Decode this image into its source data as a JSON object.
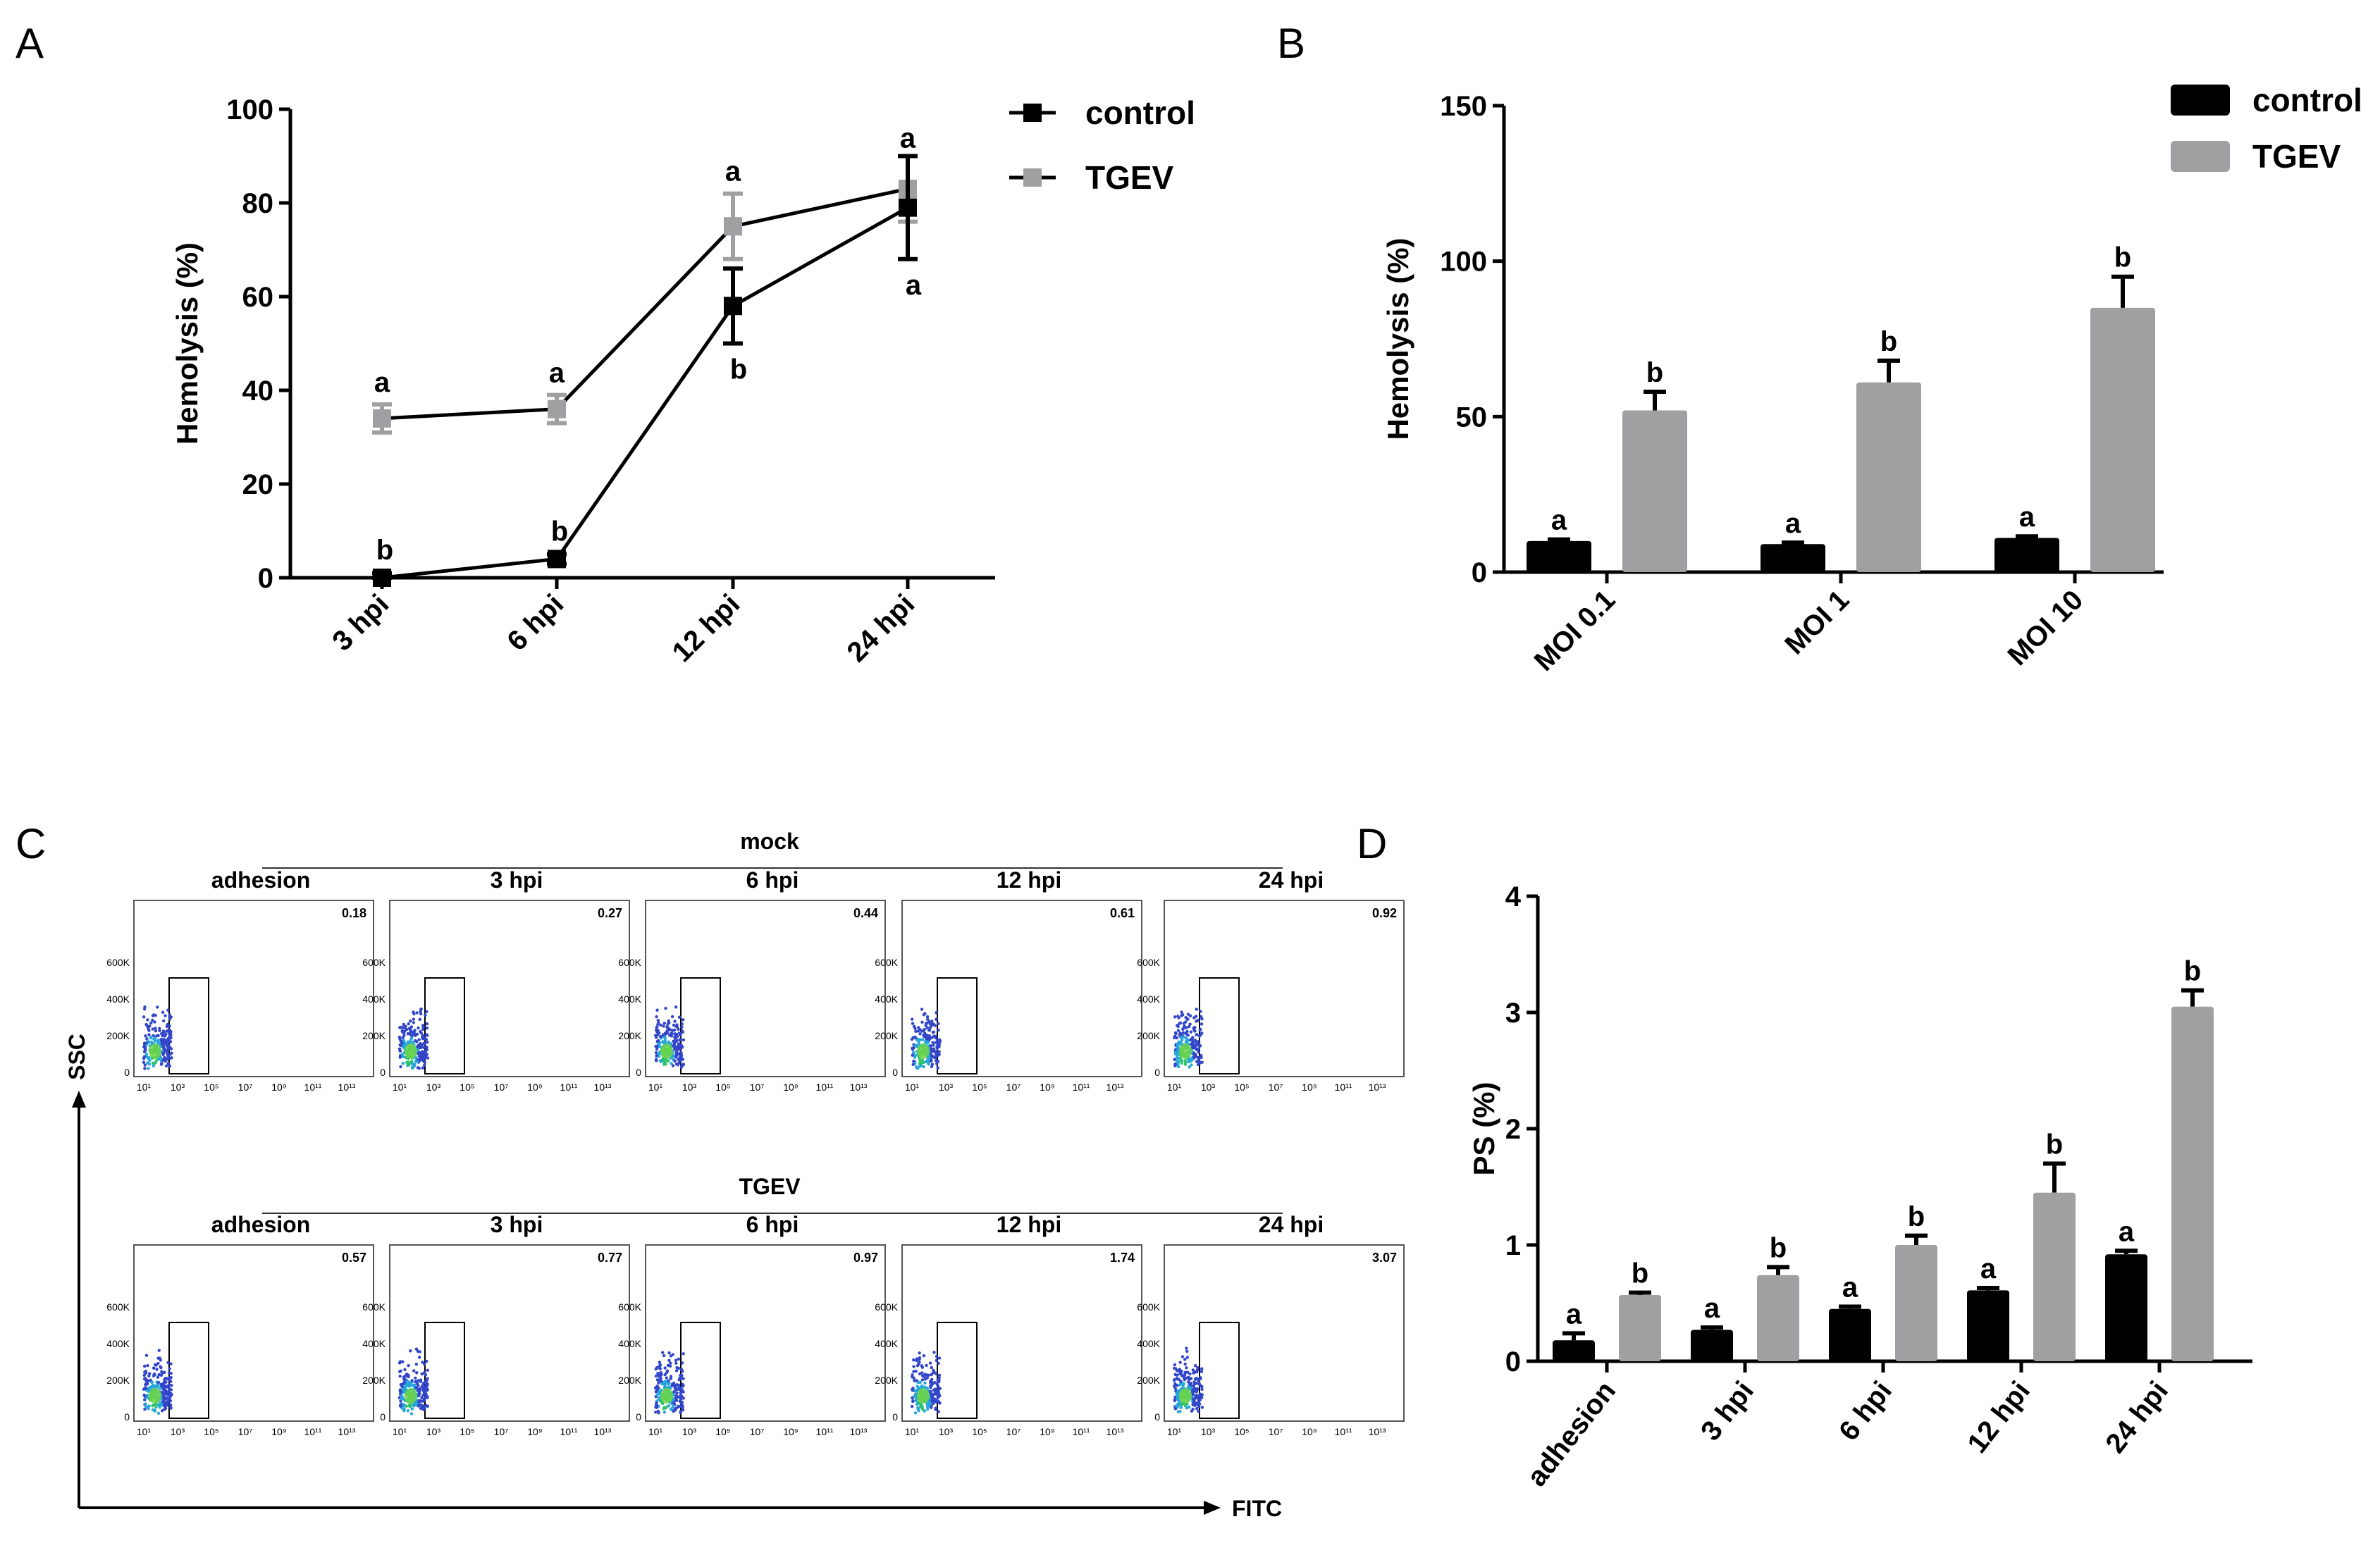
{
  "panels": {
    "A": "A",
    "B": "B",
    "C": "C",
    "D": "D"
  },
  "chart_data": [
    {
      "id": "A",
      "type": "line",
      "ylabel": "Hemolysis (%)",
      "ylim": [
        0,
        100
      ],
      "yticks": [
        "0",
        "20",
        "40",
        "60",
        "80",
        "100"
      ],
      "categories": [
        "3 hpi",
        "6 hpi",
        "12 hpi",
        "24 hpi"
      ],
      "series": [
        {
          "name": "control",
          "color": "#000000",
          "values": [
            0,
            4,
            58,
            79
          ],
          "errors": [
            1,
            1,
            8,
            11
          ],
          "letters": [
            "b",
            "b",
            "b",
            "a"
          ]
        },
        {
          "name": "TGEV",
          "color": "#a0a0a2",
          "values": [
            34,
            36,
            75,
            83
          ],
          "errors": [
            3,
            3,
            7,
            7
          ],
          "letters": [
            "a",
            "a",
            "a",
            "a"
          ]
        }
      ],
      "legend": "top-right"
    },
    {
      "id": "B",
      "type": "bar",
      "ylabel": "Hemolysis (%)",
      "ylim": [
        0,
        150
      ],
      "yticks": [
        "0",
        "50",
        "100",
        "150"
      ],
      "categories": [
        "MOI 0.1",
        "MOI 1",
        "MOI 10"
      ],
      "series": [
        {
          "name": "control",
          "color": "#000000",
          "values": [
            10,
            9,
            11
          ],
          "errors": [
            0.5,
            0.5,
            0.5
          ],
          "letters": [
            "a",
            "a",
            "a"
          ]
        },
        {
          "name": "TGEV",
          "color": "#a0a0a2",
          "values": [
            52,
            61,
            85
          ],
          "errors": [
            6,
            7,
            10
          ],
          "letters": [
            "b",
            "b",
            "b"
          ]
        }
      ],
      "legend": "top-right"
    },
    {
      "id": "D",
      "type": "bar",
      "ylabel": "PS (%)",
      "ylim": [
        0,
        4
      ],
      "yticks": [
        "0",
        "1",
        "2",
        "3",
        "4"
      ],
      "categories": [
        "adhesion",
        "3 hpi",
        "6 hpi",
        "12 hpi",
        "24 hpi"
      ],
      "series": [
        {
          "name": "control",
          "color": "#000000",
          "values": [
            0.18,
            0.27,
            0.45,
            0.61,
            0.92
          ],
          "errors": [
            0.06,
            0.02,
            0.02,
            0.02,
            0.03
          ],
          "letters": [
            "a",
            "a",
            "a",
            "a",
            "a"
          ]
        },
        {
          "name": "TGEV",
          "color": "#a0a0a2",
          "values": [
            0.57,
            0.74,
            1.0,
            1.45,
            3.05
          ],
          "errors": [
            0.02,
            0.07,
            0.08,
            0.25,
            0.14
          ],
          "letters": [
            "b",
            "b",
            "b",
            "b",
            "b"
          ]
        }
      ]
    },
    {
      "id": "C",
      "type": "scatter",
      "xlabel": "FITC",
      "ylabel": "SSC",
      "yticks": [
        "0",
        "200K",
        "400K",
        "600K"
      ],
      "xticks": [
        "10¹",
        "10³",
        "10⁵",
        "10⁷",
        "10⁹",
        "10¹¹",
        "10¹³"
      ],
      "groups": [
        {
          "name": "mock",
          "columns": [
            "adhesion",
            "3 hpi",
            "6 hpi",
            "12 hpi",
            "24 hpi"
          ],
          "values": [
            "0.18",
            "0.27",
            "0.44",
            "0.61",
            "0.92"
          ]
        },
        {
          "name": "TGEV",
          "columns": [
            "adhesion",
            "3 hpi",
            "6 hpi",
            "12 hpi",
            "24 hpi"
          ],
          "values": [
            "0.57",
            "0.77",
            "0.97",
            "1.74",
            "3.07"
          ]
        }
      ]
    }
  ]
}
